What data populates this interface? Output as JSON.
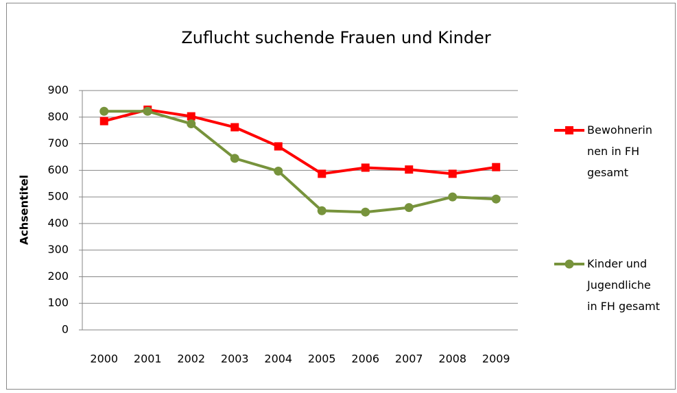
{
  "chart_data": {
    "type": "line",
    "title": "Zuflucht suchende Frauen und Kinder",
    "y_label": "Achsentitel",
    "categories": [
      "2000",
      "2001",
      "2002",
      "2003",
      "2004",
      "2005",
      "2006",
      "2007",
      "2008",
      "2009"
    ],
    "series": [
      {
        "name": "Bewohnerinnen in FH gesamt",
        "color": "#ff0000",
        "marker": "square",
        "values": [
          785,
          828,
          803,
          762,
          690,
          587,
          610,
          603,
          587,
          612
        ]
      },
      {
        "name": "Kinder und Jugendliche in FH gesamt",
        "color": "#77933c",
        "marker": "circle",
        "values": [
          822,
          822,
          775,
          645,
          597,
          448,
          443,
          460,
          500,
          492
        ]
      }
    ],
    "ylim": [
      0,
      900
    ],
    "yticks": [
      0,
      100,
      200,
      300,
      400,
      500,
      600,
      700,
      800,
      900
    ],
    "grid": true,
    "legend": "right"
  }
}
